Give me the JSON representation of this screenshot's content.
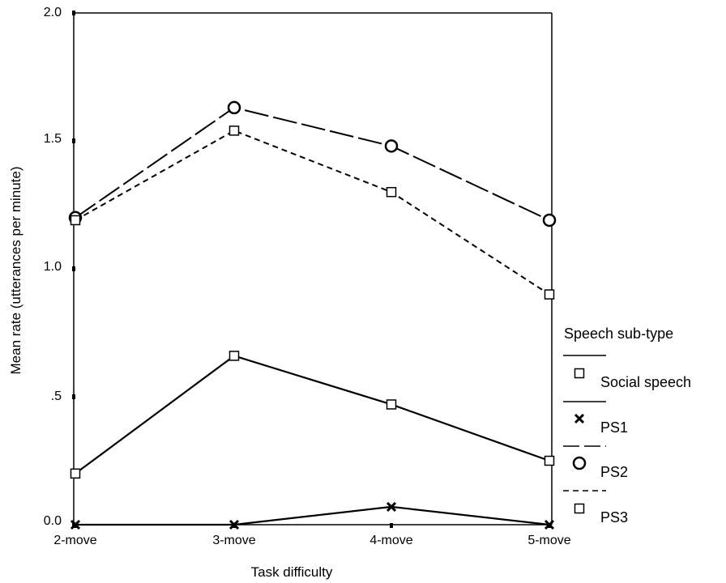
{
  "chart_data": {
    "type": "line",
    "title": "",
    "xlabel": "Task difficulty",
    "ylabel": "Mean rate (utterances per minute)",
    "categories": [
      "2-move",
      "3-move",
      "4-move",
      "5-move"
    ],
    "y_ticks": [
      "0.0",
      ".5",
      "1.0",
      "1.5",
      "2.0"
    ],
    "ylim": [
      0,
      2.0
    ],
    "grid": false,
    "legend_position": "right",
    "legend_title": "Speech sub-type",
    "series": [
      {
        "name": "Social speech",
        "values": [
          0.2,
          0.66,
          0.47,
          0.25
        ],
        "marker": "square",
        "dash": "solid"
      },
      {
        "name": "PS1",
        "values": [
          0.0,
          0.0,
          0.07,
          0.0
        ],
        "marker": "x",
        "dash": "solid"
      },
      {
        "name": "PS2",
        "values": [
          1.2,
          1.63,
          1.48,
          1.19
        ],
        "marker": "circle",
        "dash": "long-dash"
      },
      {
        "name": "PS3",
        "values": [
          1.19,
          1.54,
          1.3,
          0.9
        ],
        "marker": "square",
        "dash": "short-dash"
      }
    ]
  }
}
